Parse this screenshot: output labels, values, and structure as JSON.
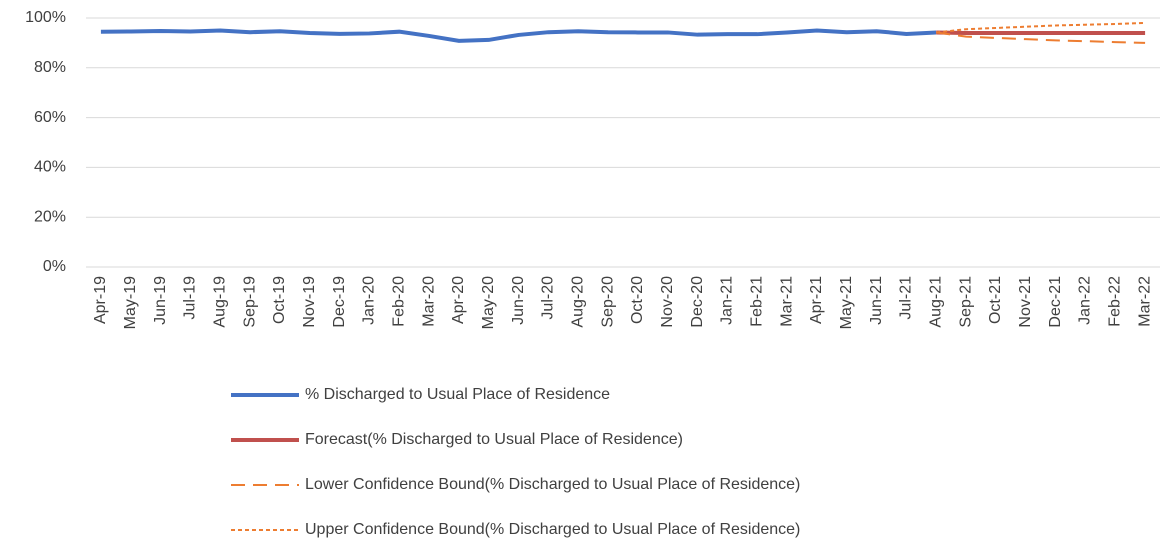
{
  "chart_data": {
    "type": "line",
    "categories": [
      "Apr-19",
      "May-19",
      "Jun-19",
      "Jul-19",
      "Aug-19",
      "Sep-19",
      "Oct-19",
      "Nov-19",
      "Dec-19",
      "Jan-20",
      "Feb-20",
      "Mar-20",
      "Apr-20",
      "May-20",
      "Jun-20",
      "Jul-20",
      "Aug-20",
      "Sep-20",
      "Oct-20",
      "Nov-20",
      "Dec-20",
      "Jan-21",
      "Feb-21",
      "Mar-21",
      "Apr-21",
      "May-21",
      "Jun-21",
      "Jul-21",
      "Aug-21",
      "Sep-21",
      "Oct-21",
      "Nov-21",
      "Dec-21",
      "Jan-22",
      "Feb-22",
      "Mar-22"
    ],
    "series": [
      {
        "name": "% Discharged to Usual Place of Residence",
        "color": "#4472c4",
        "style": "solid",
        "values": [
          94.5,
          94.6,
          94.8,
          94.6,
          95,
          94.3,
          94.7,
          94,
          93.6,
          93.8,
          94.5,
          92.8,
          90.8,
          91.2,
          93.2,
          94.3,
          94.7,
          94.3,
          94.2,
          94.2,
          93.3,
          93.5,
          93.5,
          94.2,
          95,
          94.3,
          94.7,
          93.6,
          94.2,
          null,
          null,
          null,
          null,
          null,
          null,
          null
        ]
      },
      {
        "name": "Forecast(% Discharged to Usual Place of Residence)",
        "color": "#c0504d",
        "style": "solid",
        "values": [
          null,
          null,
          null,
          null,
          null,
          null,
          null,
          null,
          null,
          null,
          null,
          null,
          null,
          null,
          null,
          null,
          null,
          null,
          null,
          null,
          null,
          null,
          null,
          null,
          null,
          null,
          null,
          null,
          94.2,
          94,
          94,
          94,
          94,
          94,
          94,
          94
        ]
      },
      {
        "name": "Lower Confidence Bound(% Discharged to Usual Place of Residence)",
        "color": "#ed7d31",
        "style": "dashed",
        "values": [
          null,
          null,
          null,
          null,
          null,
          null,
          null,
          null,
          null,
          null,
          null,
          null,
          null,
          null,
          null,
          null,
          null,
          null,
          null,
          null,
          null,
          null,
          null,
          null,
          null,
          null,
          null,
          null,
          94.2,
          92.5,
          92,
          91.5,
          91,
          90.7,
          90.3,
          90
        ]
      },
      {
        "name": "Upper Confidence Bound(% Discharged to Usual Place of Residence)",
        "color": "#ed7d31",
        "style": "dotted",
        "values": [
          null,
          null,
          null,
          null,
          null,
          null,
          null,
          null,
          null,
          null,
          null,
          null,
          null,
          null,
          null,
          null,
          null,
          null,
          null,
          null,
          null,
          null,
          null,
          null,
          null,
          null,
          null,
          null,
          94.2,
          95.5,
          96,
          96.5,
          97,
          97.3,
          97.6,
          98
        ]
      }
    ],
    "ylim": [
      0,
      100
    ],
    "yticks": [
      {
        "value": 0,
        "label": "0%"
      },
      {
        "value": 20,
        "label": "20%"
      },
      {
        "value": 40,
        "label": "40%"
      },
      {
        "value": 60,
        "label": "60%"
      },
      {
        "value": 80,
        "label": "80%"
      },
      {
        "value": 100,
        "label": "100%"
      }
    ],
    "grid": true
  }
}
